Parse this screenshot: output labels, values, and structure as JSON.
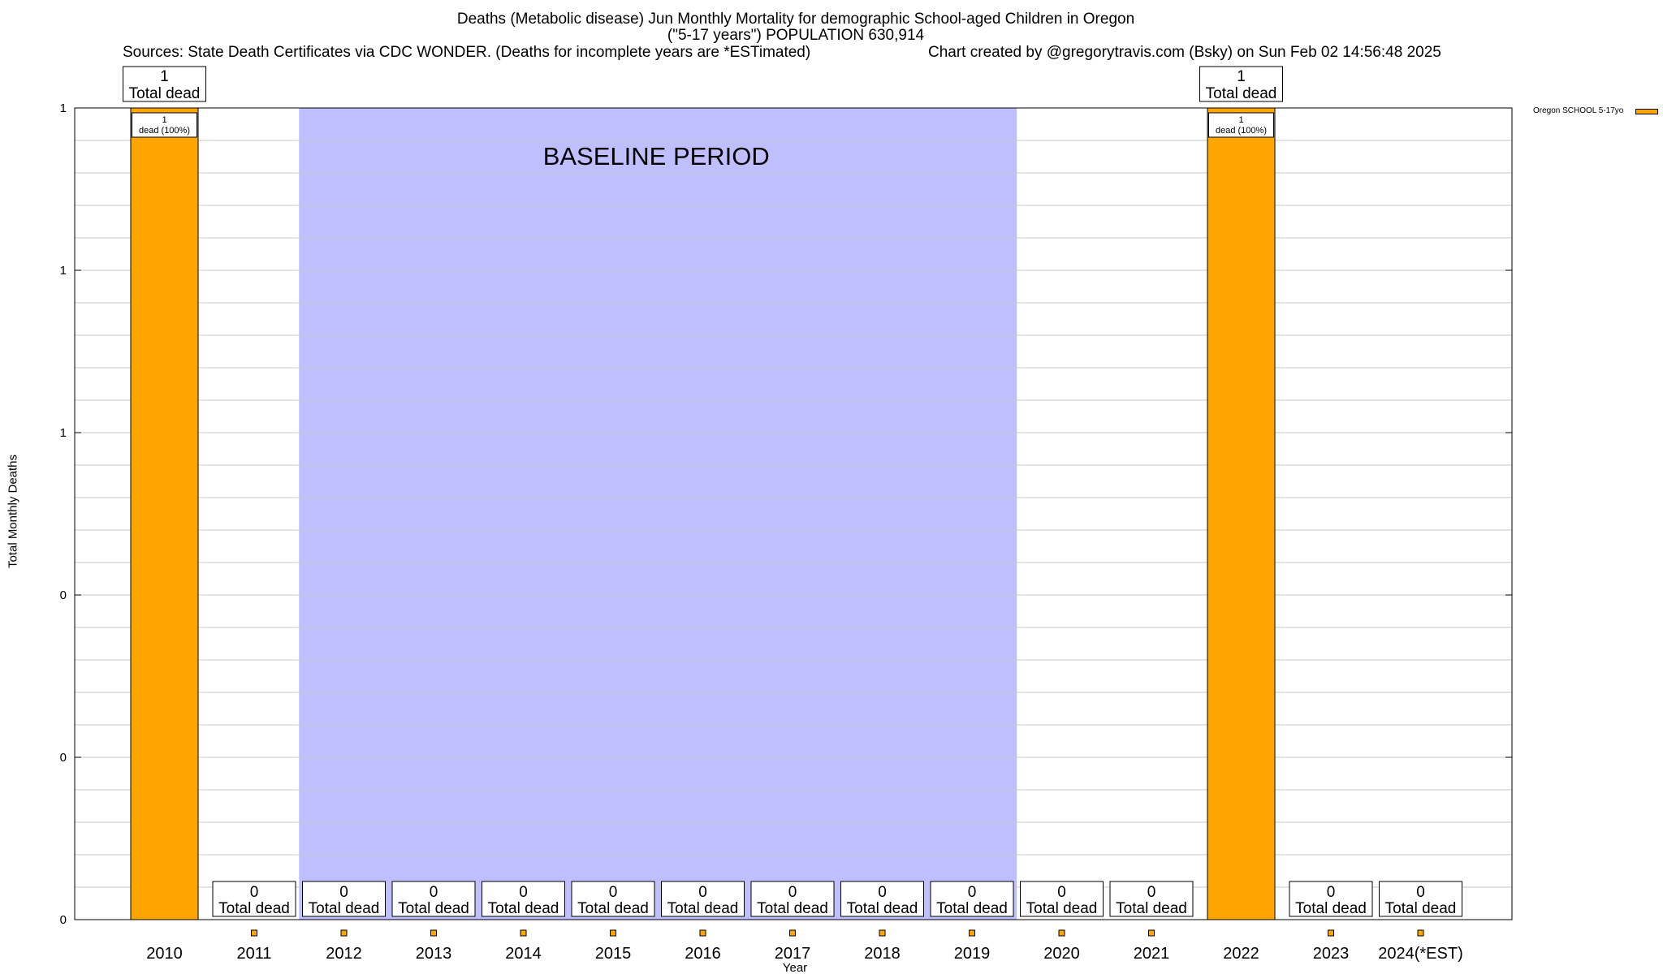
{
  "header": {
    "title_line1": "Deaths (Metabolic disease) Jun Monthly Mortality for demographic School-aged Children in Oregon",
    "title_line2": "(\"5-17 years\") POPULATION 630,914",
    "sources": "Sources: State Death Certificates via CDC WONDER. (Deaths for incomplete years are *ESTimated)",
    "credit": "Chart created by @gregorytravis.com (Bsky) on Sun Feb 02 14:56:48 2025"
  },
  "legend": {
    "label": "Oregon SCHOOL 5-17yo",
    "placement": "top-right"
  },
  "colors": {
    "bar": "#FFA500",
    "baseline": "#BFBFFF",
    "grid": "#C8C8C8"
  },
  "chart_data": {
    "type": "bar",
    "categories": [
      "2010",
      "2011",
      "2012",
      "2013",
      "2014",
      "2015",
      "2016",
      "2017",
      "2018",
      "2019",
      "2020",
      "2021",
      "2022",
      "2023",
      "2024(*EST)"
    ],
    "series": [
      {
        "name": "Oregon SCHOOL 5-17yo",
        "values": [
          1,
          0,
          0,
          0,
          0,
          0,
          0,
          0,
          0,
          0,
          0,
          0,
          1,
          0,
          0
        ]
      }
    ],
    "xlabel": "Year",
    "ylabel": "Total Monthly Deaths",
    "ylim": [
      0,
      1
    ],
    "ytick_values": [
      0,
      0.2,
      0.4,
      0.6,
      0.8,
      1
    ],
    "ytick_labels": [
      "0",
      "0",
      "0",
      "1",
      "1",
      "1"
    ],
    "grid": true,
    "baseline_period": {
      "label": "BASELINE PERIOD",
      "start": "2012",
      "end": "2019"
    },
    "total_label": "Total dead",
    "bar_labels": [
      {
        "category": "2010",
        "count": "1",
        "text": "dead (100%)"
      },
      {
        "category": "2022",
        "count": "1",
        "text": "dead (100%)"
      }
    ]
  }
}
